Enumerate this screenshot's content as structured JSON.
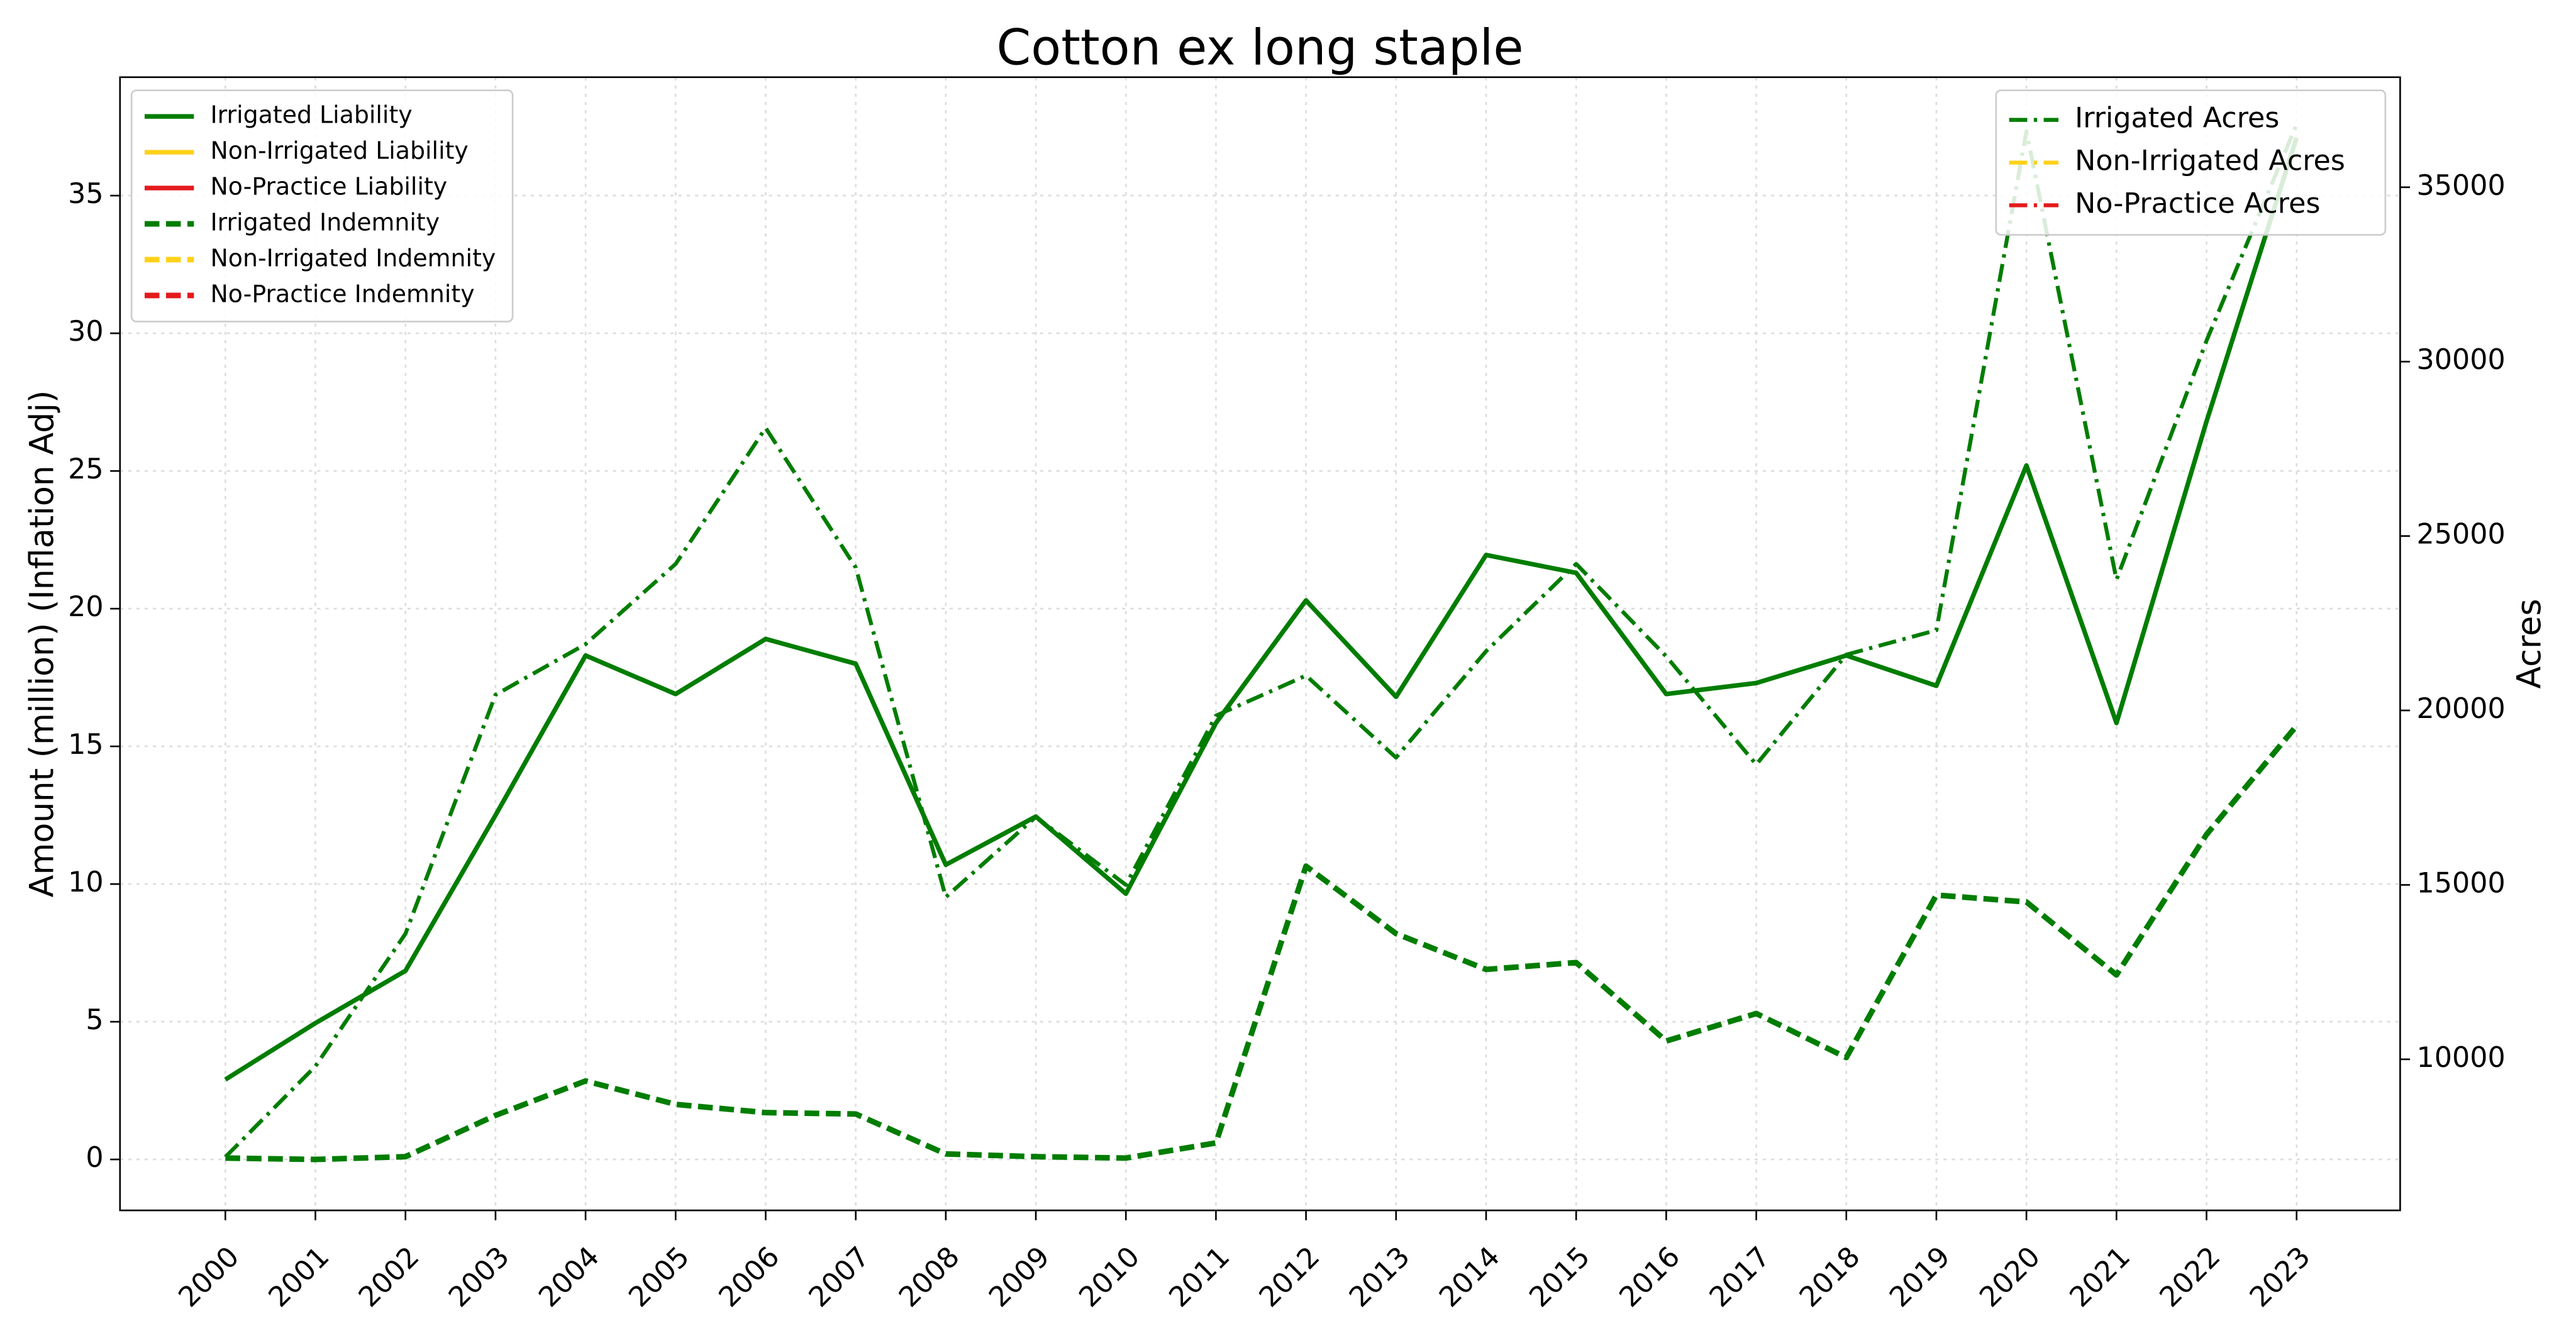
{
  "chart_data": {
    "type": "line",
    "title": "Cotton ex long staple",
    "ylabel": "Amount (million) (Inflation Adj)",
    "y2label": "Acres",
    "x": [
      2000,
      2001,
      2002,
      2003,
      2004,
      2005,
      2006,
      2007,
      2008,
      2009,
      2010,
      2011,
      2012,
      2013,
      2014,
      2015,
      2016,
      2017,
      2018,
      2019,
      2020,
      2021,
      2022,
      2023
    ],
    "xlim": [
      1998.83,
      2024.15
    ],
    "ylim": [
      -1.85,
      39.3
    ],
    "yticks": [
      0,
      5,
      10,
      15,
      20,
      25,
      30,
      35
    ],
    "y2lim": [
      5669,
      38154
    ],
    "y2ticks": [
      10000,
      15000,
      20000,
      25000,
      30000,
      35000
    ],
    "grid": true,
    "legend": "upper left",
    "legend2": "upper right",
    "series": [
      {
        "name": "Irrigated Liability",
        "color": "#007d00",
        "linestyle": "solid",
        "values": [
          2.9,
          4.95,
          6.85,
          12.5,
          18.3,
          16.9,
          18.9,
          18.0,
          10.7,
          12.45,
          9.65,
          15.85,
          20.3,
          16.8,
          21.95,
          21.3,
          16.9,
          17.3,
          18.3,
          17.2,
          25.2,
          15.85,
          26.8,
          37.1
        ]
      },
      {
        "name": "Non-Irrigated Liability",
        "color": "#ffd11a",
        "linestyle": "solid",
        "values": [
          null,
          null,
          null,
          null,
          null,
          null,
          null,
          null,
          null,
          null,
          null,
          null,
          null,
          null,
          null,
          null,
          null,
          null,
          null,
          null,
          null,
          null,
          null,
          null
        ]
      },
      {
        "name": "No-Practice Liability",
        "color": "#e31a1c",
        "linestyle": "solid",
        "values": [
          null,
          null,
          null,
          null,
          null,
          null,
          null,
          null,
          null,
          null,
          null,
          null,
          null,
          null,
          null,
          null,
          null,
          null,
          null,
          null,
          null,
          null,
          null,
          null
        ]
      },
      {
        "name": "Irrigated Indemnity",
        "color": "#007d00",
        "linestyle": "dashed",
        "values": [
          0.05,
          0,
          0.1,
          1.6,
          2.85,
          2.0,
          1.7,
          1.65,
          0.2,
          0.1,
          0.05,
          0.6,
          10.65,
          8.2,
          6.9,
          7.15,
          4.3,
          5.3,
          3.7,
          9.6,
          9.35,
          6.7,
          11.8,
          15.75
        ]
      },
      {
        "name": "Non-Irrigated Indemnity",
        "color": "#ffd11a",
        "linestyle": "dashed",
        "values": [
          null,
          null,
          null,
          null,
          null,
          null,
          null,
          null,
          null,
          null,
          null,
          null,
          null,
          null,
          null,
          null,
          null,
          null,
          null,
          null,
          null,
          null,
          null,
          null
        ]
      },
      {
        "name": "No-Practice Indemnity",
        "color": "#e31a1c",
        "linestyle": "dashed",
        "values": [
          null,
          null,
          null,
          null,
          null,
          null,
          null,
          null,
          null,
          null,
          null,
          null,
          null,
          null,
          null,
          null,
          null,
          null,
          null,
          null,
          null,
          null,
          null,
          null
        ]
      },
      {
        "name": "Irrigated Acres",
        "color": "#007d00",
        "linestyle": "dashdot",
        "axis": "y2",
        "values": [
          7200,
          9800,
          13600,
          20450,
          21900,
          24200,
          28100,
          24100,
          14650,
          16950,
          15000,
          19850,
          21000,
          18650,
          21700,
          24200,
          21550,
          18450,
          21600,
          22300,
          36600,
          23750,
          30600,
          36800
        ]
      },
      {
        "name": "Non-Irrigated Acres",
        "color": "#ffd11a",
        "linestyle": "dashdot",
        "axis": "y2",
        "values": [
          null,
          null,
          null,
          null,
          null,
          null,
          null,
          null,
          null,
          null,
          null,
          null,
          null,
          null,
          null,
          null,
          null,
          null,
          null,
          null,
          null,
          null,
          null,
          null
        ]
      },
      {
        "name": "No-Practice Acres",
        "color": "#e31a1c",
        "linestyle": "dashdot",
        "axis": "y2",
        "values": [
          null,
          null,
          null,
          null,
          null,
          null,
          null,
          null,
          null,
          null,
          null,
          null,
          null,
          null,
          null,
          null,
          null,
          null,
          null,
          null,
          null,
          null,
          null,
          null
        ]
      }
    ]
  }
}
